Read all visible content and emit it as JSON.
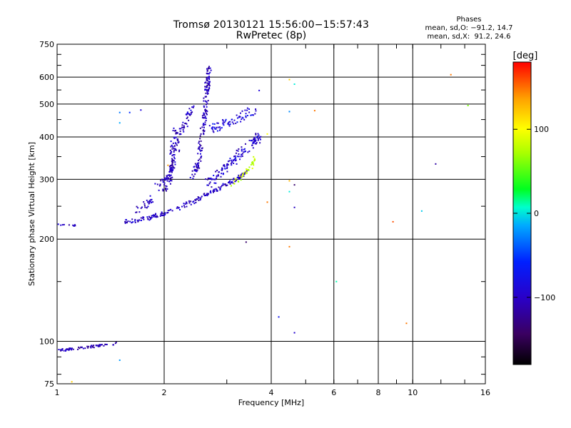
{
  "chart_data": {
    "type": "scatter",
    "title": "Tromsø 20130121 15:56:00−15:57:43",
    "subtitle": "RwPretec (8p)",
    "xlabel": "Frequency [MHz]",
    "ylabel": "Stationary phase Virtual Height [km]",
    "x_scale": "log",
    "y_scale": "log",
    "xlim": [
      1,
      16
    ],
    "ylim": [
      75,
      750
    ],
    "x_ticks": [
      1,
      2,
      4,
      6,
      8,
      10,
      16
    ],
    "y_ticks": [
      75,
      100,
      200,
      300,
      400,
      500,
      600,
      750
    ],
    "grid": true,
    "phase_stats": {
      "heading": "Phases",
      "o_line": "mean, sd,O: −91.2, 14.7",
      "x_line": "mean, sd,X:  91.2, 24.6"
    },
    "colorbar": {
      "unit": "[deg]",
      "range": [
        -180,
        180
      ],
      "ticks": [
        100,
        0,
        -100
      ],
      "tick_labels": [
        "100",
        "0",
        "−100"
      ]
    },
    "traces": [
      {
        "curve": [
          [
            1.0,
            95
          ],
          [
            1.05,
            94
          ],
          [
            1.1,
            95
          ],
          [
            1.2,
            96
          ],
          [
            1.3,
            97
          ],
          [
            1.4,
            98
          ],
          [
            1.48,
            99
          ]
        ],
        "n": 65,
        "spread": 0.012,
        "phase": -115
      },
      {
        "curve": [
          [
            1.0,
            221
          ],
          [
            1.08,
            220
          ],
          [
            1.15,
            220
          ]
        ],
        "n": 10,
        "spread": 0.01,
        "phase": -110
      },
      {
        "curve": [
          [
            1.55,
            225
          ],
          [
            1.8,
            230
          ],
          [
            2.0,
            238
          ],
          [
            2.3,
            252
          ],
          [
            2.6,
            268
          ],
          [
            2.9,
            285
          ],
          [
            3.2,
            300
          ],
          [
            3.4,
            315
          ]
        ],
        "n": 190,
        "spread": 0.02,
        "phase": -108
      },
      {
        "curve": [
          [
            1.6,
            240
          ],
          [
            1.8,
            255
          ],
          [
            2.0,
            280
          ],
          [
            2.1,
            310
          ],
          [
            2.15,
            350
          ],
          [
            2.2,
            400
          ],
          [
            2.3,
            440
          ],
          [
            2.4,
            490
          ]
        ],
        "n": 130,
        "spread": 0.035,
        "phase": -110
      },
      {
        "curve": [
          [
            1.9,
            290
          ],
          [
            2.05,
            300
          ],
          [
            2.1,
            330
          ],
          [
            2.12,
            380
          ],
          [
            2.15,
            430
          ]
        ],
        "n": 70,
        "spread": 0.03,
        "phase": -112
      },
      {
        "curve": [
          [
            2.4,
            300
          ],
          [
            2.5,
            340
          ],
          [
            2.55,
            400
          ],
          [
            2.6,
            460
          ],
          [
            2.62,
            520
          ],
          [
            2.65,
            580
          ],
          [
            2.68,
            640
          ]
        ],
        "n": 170,
        "spread": 0.03,
        "phase": -112
      },
      {
        "curve": [
          [
            2.65,
            290
          ],
          [
            2.9,
            320
          ],
          [
            3.2,
            350
          ],
          [
            3.5,
            380
          ],
          [
            3.7,
            400
          ]
        ],
        "n": 130,
        "spread": 0.045,
        "phase": -105
      },
      {
        "curve": [
          [
            2.7,
            420
          ],
          [
            3.0,
            440
          ],
          [
            3.3,
            460
          ],
          [
            3.6,
            480
          ]
        ],
        "n": 70,
        "spread": 0.05,
        "phase": -100
      },
      {
        "curve": [
          [
            3.1,
            290
          ],
          [
            3.3,
            305
          ],
          [
            3.5,
            325
          ],
          [
            3.6,
            345
          ]
        ],
        "n": 35,
        "spread": 0.02,
        "phase": 75
      }
    ],
    "points": [
      {
        "x": 1.5,
        "y": 472,
        "phase": -55
      },
      {
        "x": 1.5,
        "y": 440,
        "phase": -40
      },
      {
        "x": 1.6,
        "y": 472,
        "phase": -80
      },
      {
        "x": 1.72,
        "y": 480,
        "phase": -100
      },
      {
        "x": 1.5,
        "y": 88,
        "phase": -45
      },
      {
        "x": 1.1,
        "y": 76,
        "phase": 120
      },
      {
        "x": 2.05,
        "y": 330,
        "phase": 140
      },
      {
        "x": 3.7,
        "y": 548,
        "phase": -100
      },
      {
        "x": 3.9,
        "y": 408,
        "phase": 100
      },
      {
        "x": 3.9,
        "y": 257,
        "phase": 150
      },
      {
        "x": 3.4,
        "y": 196,
        "phase": -140
      },
      {
        "x": 4.5,
        "y": 590,
        "phase": 120
      },
      {
        "x": 4.65,
        "y": 572,
        "phase": -20
      },
      {
        "x": 4.5,
        "y": 475,
        "phase": -50
      },
      {
        "x": 5.3,
        "y": 478,
        "phase": 150
      },
      {
        "x": 4.5,
        "y": 297,
        "phase": 130
      },
      {
        "x": 4.65,
        "y": 289,
        "phase": -140
      },
      {
        "x": 4.5,
        "y": 276,
        "phase": -20
      },
      {
        "x": 4.65,
        "y": 248,
        "phase": -110
      },
      {
        "x": 4.5,
        "y": 190,
        "phase": 150
      },
      {
        "x": 4.2,
        "y": 118,
        "phase": -90
      },
      {
        "x": 4.65,
        "y": 106,
        "phase": -105
      },
      {
        "x": 6.1,
        "y": 150,
        "phase": -10
      },
      {
        "x": 8.8,
        "y": 225,
        "phase": 160
      },
      {
        "x": 9.6,
        "y": 113,
        "phase": 150
      },
      {
        "x": 10.6,
        "y": 242,
        "phase": -30
      },
      {
        "x": 11.6,
        "y": 333,
        "phase": -120
      },
      {
        "x": 12.8,
        "y": 610,
        "phase": 150
      },
      {
        "x": 14.3,
        "y": 495,
        "phase": 50
      }
    ]
  }
}
